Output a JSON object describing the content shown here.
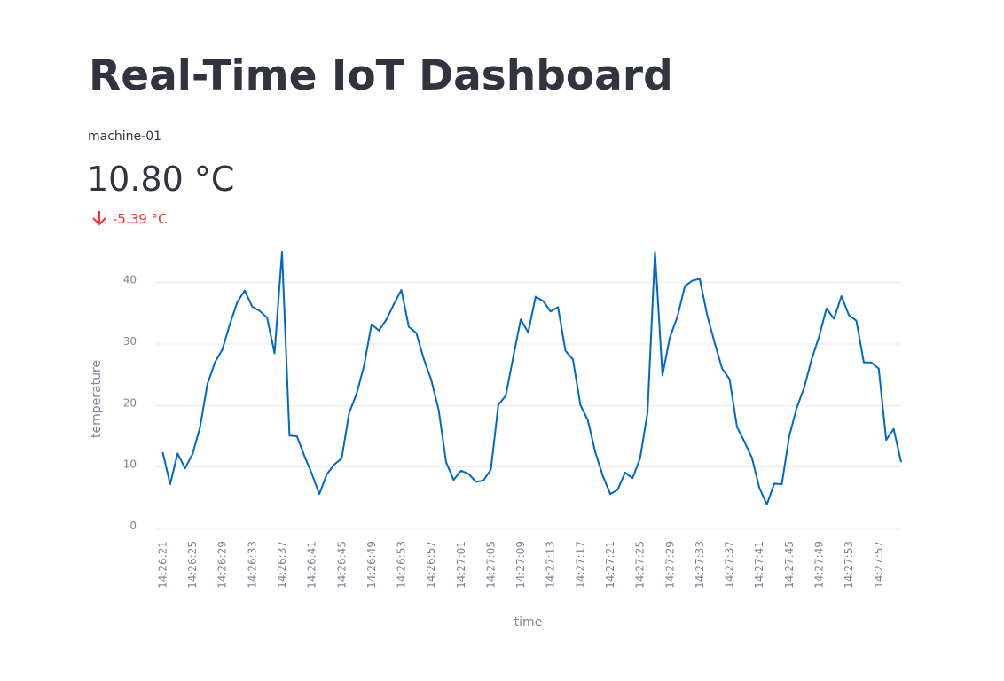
{
  "header": {
    "title": "Real-Time IoT Dashboard"
  },
  "metric": {
    "label": "machine-01",
    "value": "10.80 °C",
    "delta": "-5.39 °C"
  },
  "chart_data": {
    "type": "line",
    "color": "#0068c9",
    "grid": true,
    "x_label": "time",
    "y_label": "temperature",
    "x": [
      "14:26:21",
      "14:26:22",
      "14:26:23",
      "14:26:24",
      "14:26:25",
      "14:26:26",
      "14:26:27",
      "14:26:28",
      "14:26:29",
      "14:26:30",
      "14:26:31",
      "14:26:32",
      "14:26:33",
      "14:26:34",
      "14:26:35",
      "14:26:36",
      "14:26:37",
      "14:26:38",
      "14:26:39",
      "14:26:40",
      "14:26:41",
      "14:26:42",
      "14:26:43",
      "14:26:44",
      "14:26:45",
      "14:26:46",
      "14:26:47",
      "14:26:48",
      "14:26:49",
      "14:26:50",
      "14:26:51",
      "14:26:52",
      "14:26:53",
      "14:26:54",
      "14:26:55",
      "14:26:56",
      "14:26:57",
      "14:26:58",
      "14:26:59",
      "14:27:00",
      "14:27:01",
      "14:27:02",
      "14:27:03",
      "14:27:04",
      "14:27:05",
      "14:27:06",
      "14:27:07",
      "14:27:08",
      "14:27:09",
      "14:27:10",
      "14:27:11",
      "14:27:12",
      "14:27:13",
      "14:27:14",
      "14:27:15",
      "14:27:16",
      "14:27:17",
      "14:27:18",
      "14:27:19",
      "14:27:20",
      "14:27:21",
      "14:27:22",
      "14:27:23",
      "14:27:24",
      "14:27:25",
      "14:27:26",
      "14:27:27",
      "14:27:28",
      "14:27:29",
      "14:27:30",
      "14:27:31",
      "14:27:32",
      "14:27:33",
      "14:27:34",
      "14:27:35",
      "14:27:36",
      "14:27:37",
      "14:27:38",
      "14:27:39",
      "14:27:40",
      "14:27:41",
      "14:27:42",
      "14:27:43",
      "14:27:44",
      "14:27:45",
      "14:27:46",
      "14:27:47",
      "14:27:48",
      "14:27:49",
      "14:27:50",
      "14:27:51",
      "14:27:52",
      "14:27:53",
      "14:27:54",
      "14:27:55",
      "14:27:56",
      "14:27:57",
      "14:27:58",
      "14:27:59",
      "14:28:00"
    ],
    "values": [
      12.4,
      7.2,
      12.2,
      9.8,
      12.1,
      16.4,
      23.5,
      27.0,
      29.1,
      33.2,
      36.8,
      38.7,
      36.1,
      35.4,
      34.3,
      28.5,
      45,
      15.1,
      15.0,
      11.8,
      8.9,
      5.6,
      8.8,
      10.4,
      11.4,
      18.8,
      21.9,
      26.5,
      33.2,
      32.2,
      34.0,
      36.5,
      38.8,
      32.8,
      31.8,
      27.6,
      24.2,
      19.3,
      10.8,
      7.9,
      9.4,
      8.9,
      7.6,
      7.8,
      9.6,
      20.1,
      21.6,
      27.9,
      34.0,
      31.9,
      37.7,
      37.0,
      35.3,
      36.0,
      28.9,
      27.5,
      20.1,
      17.6,
      12.4,
      8.6,
      5.6,
      6.3,
      9.1,
      8.2,
      11.4,
      18.8,
      45,
      24.9,
      31.1,
      34.4,
      39.4,
      40.3,
      40.6,
      34.7,
      30.2,
      26.0,
      24.3,
      16.5,
      14.1,
      11.5,
      6.6,
      3.9,
      7.3,
      7.2,
      15.0,
      19.6,
      22.9,
      27.5,
      31.2,
      35.8,
      34.1,
      37.8,
      34.7,
      33.8,
      27.0,
      27.0,
      26.0,
      14.4,
      16.19,
      10.8
    ],
    "xlim": [
      "14:26:20",
      "14:28:00"
    ],
    "xticks": [
      "14:26:21",
      "14:26:25",
      "14:26:29",
      "14:26:33",
      "14:26:37",
      "14:26:41",
      "14:26:45",
      "14:26:49",
      "14:26:53",
      "14:26:57",
      "14:27:01",
      "14:27:05",
      "14:27:09",
      "14:27:13",
      "14:27:17",
      "14:27:21",
      "14:27:25",
      "14:27:29",
      "14:27:33",
      "14:27:37",
      "14:27:41",
      "14:27:45",
      "14:27:49",
      "14:27:53",
      "14:27:57"
    ],
    "ylim": [
      0,
      45
    ],
    "yticks": [
      0,
      10,
      20,
      30,
      40
    ]
  }
}
